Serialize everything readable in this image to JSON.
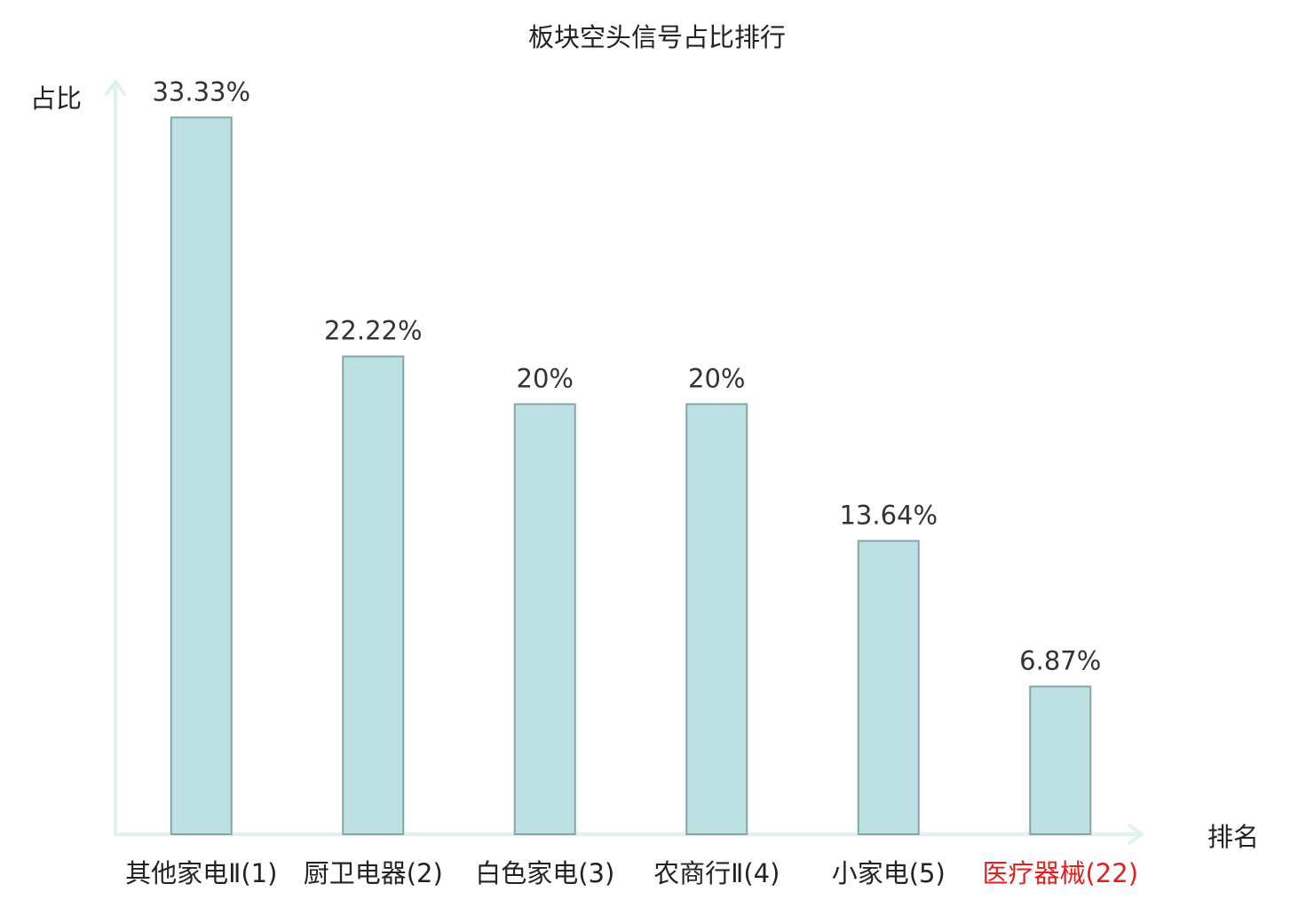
{
  "chart_data": {
    "type": "bar",
    "title": "板块空头信号占比排行",
    "xlabel": "排名",
    "ylabel": "占比",
    "categories": [
      {
        "name": "其他家电Ⅱ",
        "rank": "(1)",
        "highlight": false
      },
      {
        "name": "厨卫电器",
        "rank": "(2)",
        "highlight": false
      },
      {
        "name": "白色家电",
        "rank": "(3)",
        "highlight": false
      },
      {
        "name": "农商行Ⅱ",
        "rank": "(4)",
        "highlight": false
      },
      {
        "name": "小家电",
        "rank": "(5)",
        "highlight": false
      },
      {
        "name": "医疗器械",
        "rank": "(22)",
        "highlight": true
      }
    ],
    "values": [
      33.33,
      22.22,
      20,
      20,
      13.64,
      6.87
    ],
    "value_labels": [
      "33.33%",
      "22.22%",
      "20%",
      "20%",
      "13.64%",
      "6.87%"
    ],
    "ylim": [
      0,
      34.5
    ],
    "grid": false,
    "colors": {
      "bar_fill": "#bde0e3",
      "bar_stroke": "#85a5a8",
      "axis": "#e0f2ef",
      "label_text": "#222222",
      "highlight_text": "#e0201c"
    }
  }
}
